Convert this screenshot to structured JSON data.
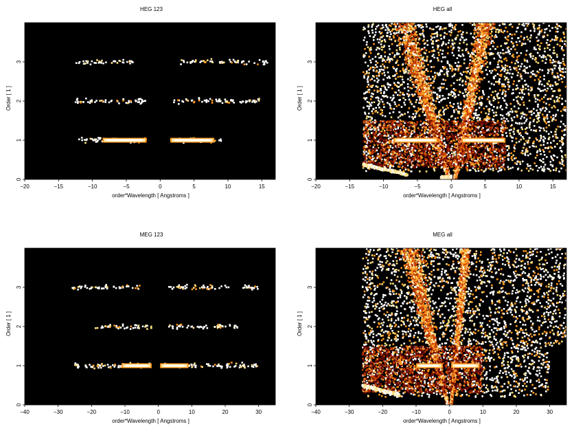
{
  "chart_data": [
    {
      "type": "heatmap",
      "title": "HEG 123",
      "xlabel": "order*Wavelength [ Angstroms ]",
      "ylabel": "Order [ 1 ]",
      "xlim": [
        -20,
        17
      ],
      "ylim": [
        0,
        4
      ],
      "xticks": [
        -20,
        -15,
        -10,
        -5,
        0,
        5,
        10,
        15
      ],
      "yticks": [
        0,
        1,
        2,
        3
      ],
      "colormap": [
        "#000000",
        "#6a0800",
        "#c43c00",
        "#ff9a20",
        "#ffe080",
        "#ffffff"
      ],
      "background": "#000000",
      "features": [
        {
          "kind": "band",
          "order": 1,
          "x": [
            -12,
            -2
          ],
          "intensity": 0.6
        },
        {
          "kind": "band",
          "order": 1,
          "x": [
            1.5,
            9
          ],
          "intensity": 0.6
        },
        {
          "kind": "core",
          "order": 1,
          "x": [
            -8.5,
            -2
          ],
          "intensity": 1.0
        },
        {
          "kind": "core",
          "order": 1,
          "x": [
            1.5,
            8
          ],
          "intensity": 1.0
        },
        {
          "kind": "band",
          "order": 2,
          "x": [
            -12.5,
            -2
          ],
          "intensity": 0.35
        },
        {
          "kind": "band",
          "order": 2,
          "x": [
            2,
            15
          ],
          "intensity": 0.35
        },
        {
          "kind": "band",
          "order": 3,
          "x": [
            -12.5,
            -4
          ],
          "intensity": 0.25
        },
        {
          "kind": "band",
          "order": 3,
          "x": [
            3,
            16
          ],
          "intensity": 0.25
        }
      ]
    },
    {
      "type": "heatmap",
      "title": "HEG all",
      "xlabel": "order*Wavelength [ Angstroms ]",
      "ylabel": "Order [ 1 ]",
      "xlim": [
        -20,
        17
      ],
      "ylim": [
        0,
        4
      ],
      "xticks": [
        -20,
        -15,
        -10,
        -5,
        0,
        5,
        10,
        15
      ],
      "yticks": [
        0,
        1,
        2,
        3
      ],
      "colormap": [
        "#000000",
        "#6a0800",
        "#c43c00",
        "#ff9a20",
        "#ffe080",
        "#ffffff"
      ],
      "background": "#000000",
      "features": [
        {
          "kind": "scatter",
          "x": [
            -13,
            17
          ],
          "y": [
            1.5,
            4
          ],
          "intensity": 0.5
        },
        {
          "kind": "scatter",
          "x": [
            -13,
            17
          ],
          "y": [
            0.2,
            1.5
          ],
          "intensity": 0.55
        },
        {
          "kind": "wedge",
          "x_at_y0": -0.3,
          "x_at_ymax": -7,
          "intensity": 0.7
        },
        {
          "kind": "wedge",
          "x_at_y0": 0.5,
          "x_at_ymax": 5,
          "intensity": 0.7
        },
        {
          "kind": "dense_block",
          "x": [
            -13,
            8
          ],
          "y": [
            0.3,
            1.5
          ],
          "intensity": 0.6
        },
        {
          "kind": "core",
          "order": 1,
          "x": [
            -8.5,
            -2
          ],
          "intensity": 1.0
        },
        {
          "kind": "core",
          "order": 1,
          "x": [
            1.5,
            8
          ],
          "intensity": 1.0
        },
        {
          "kind": "curve",
          "x": [
            -13,
            -6.5
          ],
          "y": [
            0.38,
            0.12
          ],
          "intensity": 0.95
        },
        {
          "kind": "curve",
          "x": [
            -1.5,
            0
          ],
          "y": [
            0.05,
            0.05
          ],
          "intensity": 0.8
        }
      ]
    },
    {
      "type": "heatmap",
      "title": "MEG 123",
      "xlabel": "order*Wavelength [ Angstroms ]",
      "ylabel": "Order [ 1 ]",
      "xlim": [
        -40,
        35
      ],
      "ylim": [
        0,
        4
      ],
      "xticks": [
        -40,
        -30,
        -20,
        -10,
        0,
        10,
        20,
        30
      ],
      "yticks": [
        0,
        1,
        2,
        3
      ],
      "colormap": [
        "#000000",
        "#6a0800",
        "#c43c00",
        "#ff9a20",
        "#ffe080",
        "#ffffff"
      ],
      "background": "#000000",
      "features": [
        {
          "kind": "band",
          "order": 1,
          "x": [
            -25,
            -2
          ],
          "intensity": 0.5
        },
        {
          "kind": "band",
          "order": 1,
          "x": [
            1,
            30
          ],
          "intensity": 0.45
        },
        {
          "kind": "core",
          "order": 1,
          "x": [
            -11,
            -2
          ],
          "intensity": 1.0
        },
        {
          "kind": "core",
          "order": 1,
          "x": [
            0.5,
            9
          ],
          "intensity": 1.0
        },
        {
          "kind": "band",
          "order": 2,
          "x": [
            -19,
            -1
          ],
          "intensity": 0.3
        },
        {
          "kind": "band",
          "order": 2,
          "x": [
            3,
            25
          ],
          "intensity": 0.3
        },
        {
          "kind": "band",
          "order": 3,
          "x": [
            -26,
            -5
          ],
          "intensity": 0.3
        },
        {
          "kind": "band",
          "order": 3,
          "x": [
            3,
            30
          ],
          "intensity": 0.3
        }
      ]
    },
    {
      "type": "heatmap",
      "title": "MEG all",
      "xlabel": "order*Wavelength [ Angstroms ]",
      "ylabel": "Order [ 1 ]",
      "xlim": [
        -40,
        35
      ],
      "ylim": [
        0,
        4
      ],
      "xticks": [
        -40,
        -30,
        -20,
        -10,
        0,
        10,
        20,
        30
      ],
      "yticks": [
        0,
        1,
        2,
        3
      ],
      "colormap": [
        "#000000",
        "#6a0800",
        "#c43c00",
        "#ff9a20",
        "#ffe080",
        "#ffffff"
      ],
      "background": "#000000",
      "features": [
        {
          "kind": "scatter",
          "x": [
            -26,
            35
          ],
          "y": [
            1.5,
            4
          ],
          "intensity": 0.5
        },
        {
          "kind": "scatter",
          "x": [
            -26,
            30
          ],
          "y": [
            0.2,
            1.5
          ],
          "intensity": 0.55
        },
        {
          "kind": "wedge",
          "x_at_y0": -0.5,
          "x_at_ymax": -12,
          "intensity": 0.7
        },
        {
          "kind": "wedge",
          "x_at_y0": 0.5,
          "x_at_ymax": 5,
          "intensity": 0.7
        },
        {
          "kind": "dense_block",
          "x": [
            -26,
            10
          ],
          "y": [
            0.3,
            1.5
          ],
          "intensity": 0.6
        },
        {
          "kind": "core",
          "order": 1,
          "x": [
            -10,
            -2
          ],
          "intensity": 1.0
        },
        {
          "kind": "core",
          "order": 1,
          "x": [
            0.5,
            9
          ],
          "intensity": 1.0
        },
        {
          "kind": "curve",
          "x": [
            -26,
            -15
          ],
          "y": [
            0.5,
            0.25
          ],
          "intensity": 0.95
        }
      ]
    }
  ]
}
